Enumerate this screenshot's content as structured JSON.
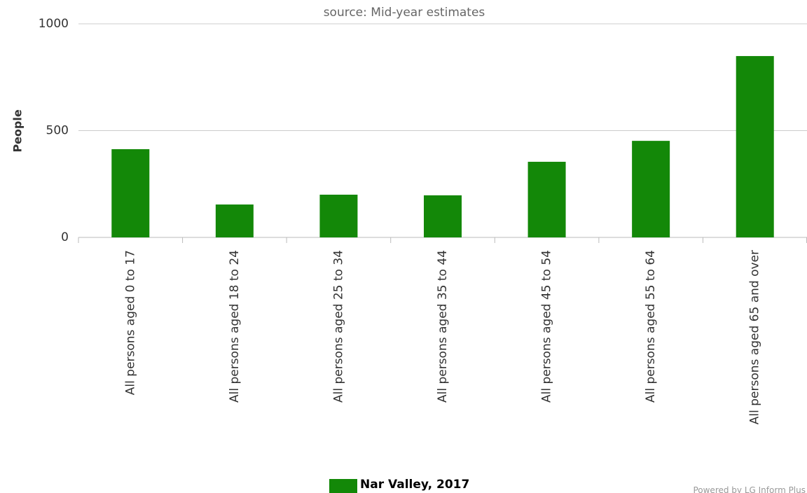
{
  "chart_data": {
    "type": "bar",
    "subtitle": "source: Mid-year estimates",
    "y_label": "People",
    "categories": [
      "All persons aged 0 to 17",
      "All persons aged 18 to 24",
      "All persons aged 25 to 34",
      "All persons aged 35 to 44",
      "All persons aged 45 to 54",
      "All persons aged 55 to 64",
      "All persons aged 65 and over"
    ],
    "series": [
      {
        "name": "Nar Valley, 2017",
        "color": "#138808",
        "values": [
          413,
          154,
          200,
          197,
          354,
          452,
          849
        ]
      }
    ],
    "ylim": [
      0,
      1000
    ],
    "yticks": [
      0,
      500,
      1000
    ],
    "grid": true,
    "legend": "bottom",
    "credit": "Powered by LG Inform Plus"
  }
}
